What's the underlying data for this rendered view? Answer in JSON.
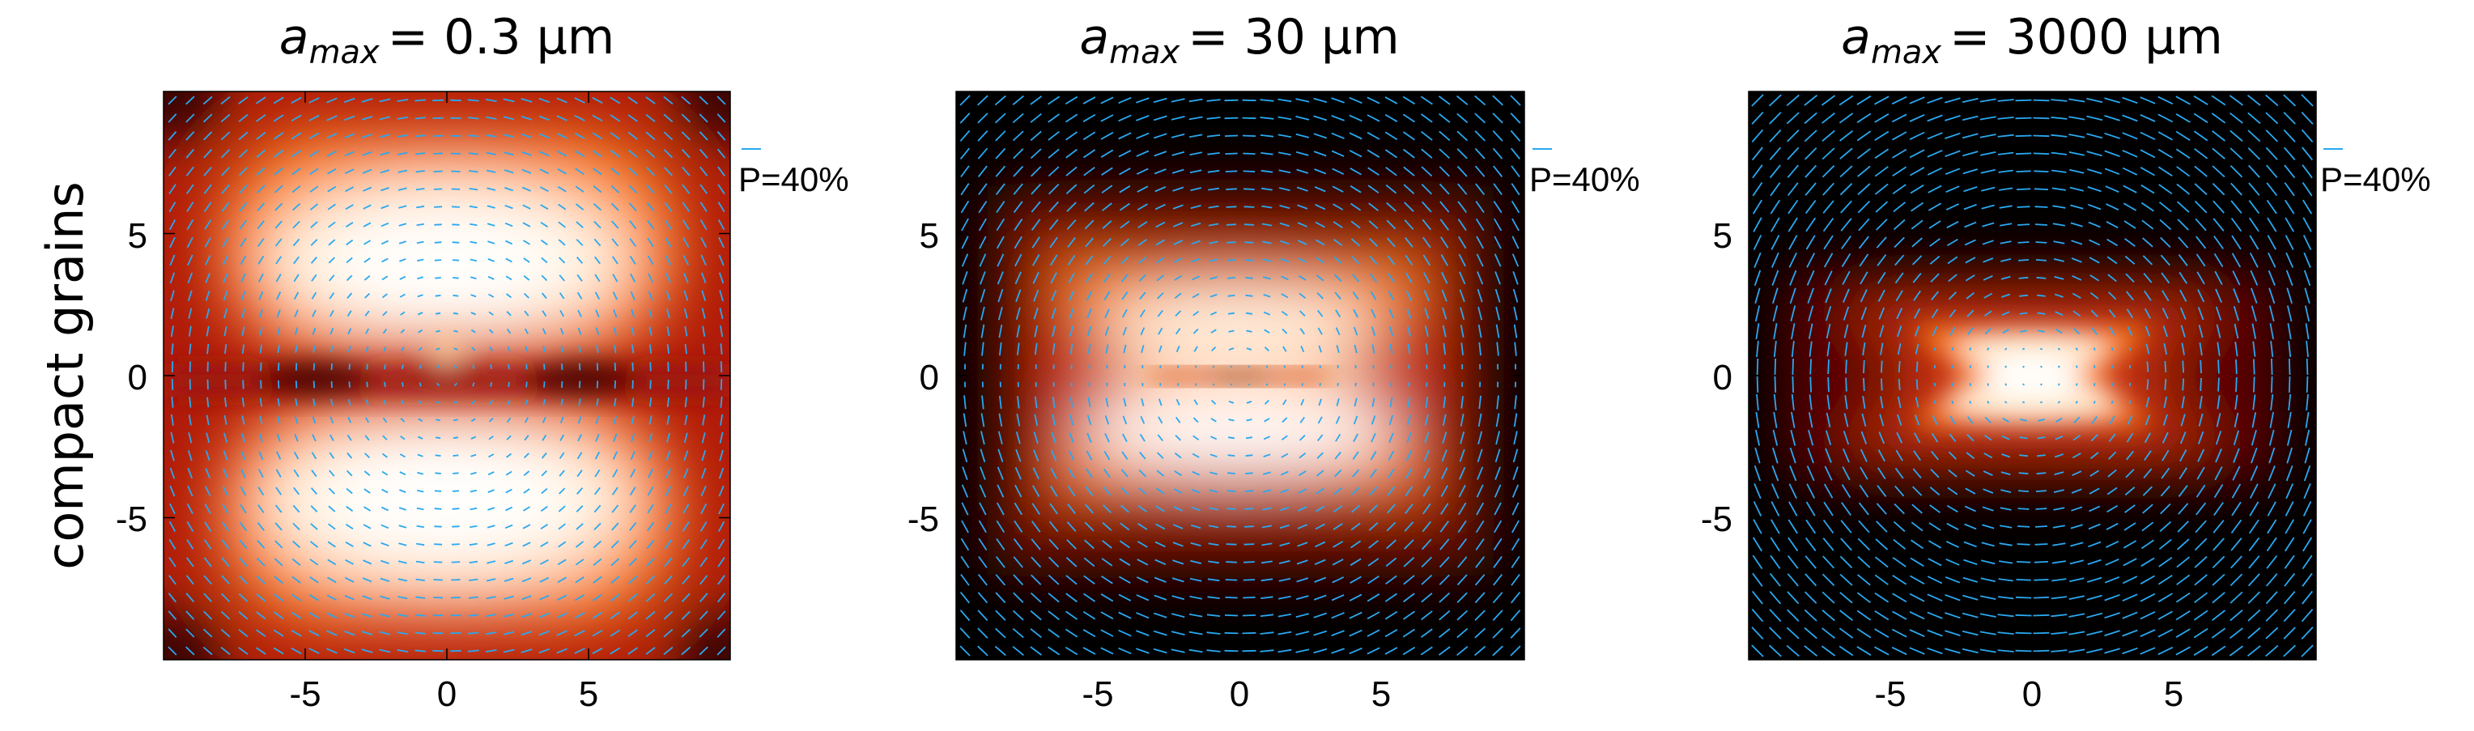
{
  "figure": {
    "row_label": "compact grains"
  },
  "colors": {
    "vector": "#2aa8f0",
    "map_dark": "#000000",
    "map_mid": "#b71d0c",
    "map_bright": "#ffffff"
  },
  "chart_data": [
    {
      "type": "heatmap",
      "title_var": "a",
      "title_sub": "max",
      "title_value": "= 0.3 μm",
      "xlim": [
        -10,
        10
      ],
      "ylim": [
        -10,
        10
      ],
      "xticks": [
        "-5",
        "0",
        "5"
      ],
      "yticks": [
        "5",
        "0",
        "-5"
      ],
      "legend": "P=40%",
      "legend_placement": "top-right, outside",
      "colormap": "black-red-orange-white",
      "vector_field": "polarization vectors"
    },
    {
      "type": "heatmap",
      "title_var": "a",
      "title_sub": "max",
      "title_value": "= 30 μm",
      "xlim": [
        -10,
        10
      ],
      "ylim": [
        -10,
        10
      ],
      "xticks": [
        "-5",
        "0",
        "5"
      ],
      "yticks": [
        "5",
        "0",
        "-5"
      ],
      "legend": "P=40%",
      "legend_placement": "top-right, outside",
      "colormap": "black-red-orange-white",
      "vector_field": "polarization vectors"
    },
    {
      "type": "heatmap",
      "title_var": "a",
      "title_sub": "max",
      "title_value": "= 3000 μm",
      "xlim": [
        -10,
        10
      ],
      "ylim": [
        -10,
        10
      ],
      "xticks": [
        "-5",
        "0",
        "5"
      ],
      "yticks": [
        "5",
        "0",
        "-5"
      ],
      "legend": "P=40%",
      "legend_placement": "top-right, outside",
      "colormap": "black-red-orange-white",
      "vector_field": "polarization vectors"
    }
  ]
}
